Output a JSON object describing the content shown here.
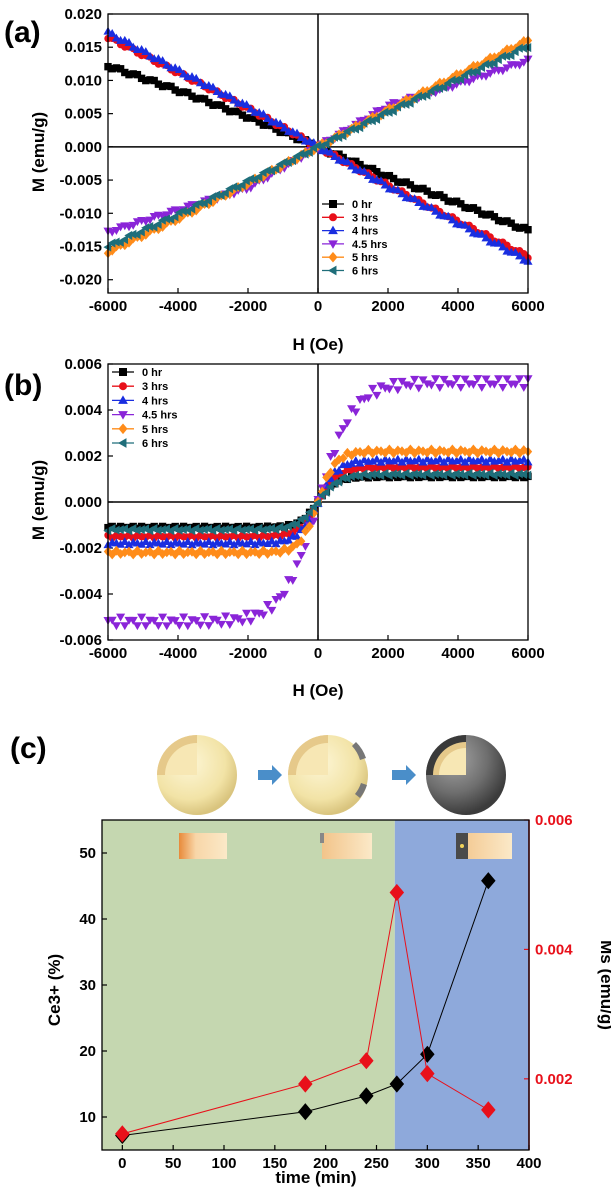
{
  "chart_data": [
    {
      "panel": "(a)",
      "type": "scatter",
      "xlabel": "H (Oe)",
      "ylabel": "M (emu/g)",
      "xlim": [
        -6000,
        6000
      ],
      "ylim": [
        -0.022,
        0.02
      ],
      "xticks": [
        "-6000",
        "-4000",
        "-2000",
        "0",
        "2000",
        "4000",
        "6000"
      ],
      "yticks": [
        "0.020",
        "0.015",
        "0.010",
        "0.005",
        "0.000",
        "-0.005",
        "-0.010",
        "-0.015",
        "-0.020"
      ],
      "legend_position": "bottom-right",
      "series": [
        {
          "name": "0 hr",
          "color": "#000000",
          "marker": "square",
          "x": [
            -6000,
            -4000,
            -2000,
            0,
            2000,
            4000,
            6000
          ],
          "y": [
            0.0122,
            0.0085,
            0.0045,
            0.0,
            -0.0045,
            -0.0085,
            -0.0126
          ]
        },
        {
          "name": "3 hrs",
          "color": "#e8101a",
          "marker": "circle",
          "x": [
            -6000,
            -4000,
            -2000,
            0,
            2000,
            4000,
            6000
          ],
          "y": [
            0.0165,
            0.0112,
            0.0058,
            0.0,
            -0.0058,
            -0.0112,
            -0.0165
          ]
        },
        {
          "name": "4 hrs",
          "color": "#1a2ee0",
          "marker": "triangle-up",
          "x": [
            -6000,
            -4000,
            -2000,
            0,
            2000,
            4000,
            6000
          ],
          "y": [
            0.0172,
            0.0115,
            0.006,
            0.0,
            -0.006,
            -0.0115,
            -0.0172
          ]
        },
        {
          "name": "4.5 hrs",
          "color": "#8a25d8",
          "marker": "triangle-down",
          "x": [
            -6000,
            -4000,
            -2000,
            0,
            2000,
            4000,
            6000
          ],
          "y": [
            -0.0128,
            -0.0095,
            -0.0062,
            0.0,
            0.0062,
            0.0095,
            0.013
          ]
        },
        {
          "name": "5 hrs",
          "color": "#ff8c1a",
          "marker": "diamond",
          "x": [
            -6000,
            -4000,
            -2000,
            0,
            2000,
            4000,
            6000
          ],
          "y": [
            -0.0158,
            -0.0108,
            -0.0055,
            0.0,
            0.0055,
            0.0108,
            0.016
          ]
        },
        {
          "name": "6 hrs",
          "color": "#1f6e7a",
          "marker": "triangle-left",
          "x": [
            -6000,
            -4000,
            -2000,
            0,
            2000,
            4000,
            6000
          ],
          "y": [
            -0.015,
            -0.0102,
            -0.0052,
            0.0,
            0.0052,
            0.0102,
            0.0152
          ]
        }
      ]
    },
    {
      "panel": "(b)",
      "type": "scatter",
      "xlabel": "H (Oe)",
      "ylabel": "M (emu/g)",
      "xlim": [
        -6000,
        6000
      ],
      "ylim": [
        -0.006,
        0.006
      ],
      "xticks": [
        "-6000",
        "-4000",
        "-2000",
        "0",
        "2000",
        "4000",
        "6000"
      ],
      "yticks": [
        "0.006",
        "0.004",
        "0.002",
        "0.000",
        "-0.002",
        "-0.004",
        "-0.006"
      ],
      "legend_position": "top-left",
      "series": [
        {
          "name": "0 hr",
          "color": "#000000",
          "marker": "square",
          "ms": 0.0011,
          "h0": 500
        },
        {
          "name": "3 hrs",
          "color": "#e8101a",
          "marker": "circle",
          "ms": 0.0015,
          "h0": 550
        },
        {
          "name": "4 hrs",
          "color": "#1a2ee0",
          "marker": "triangle-up",
          "ms": 0.0018,
          "h0": 550
        },
        {
          "name": "4.5 hrs",
          "color": "#8a25d8",
          "marker": "triangle-down",
          "ms": 0.0052,
          "h0": 1000
        },
        {
          "name": "5 hrs",
          "color": "#ff8c1a",
          "marker": "diamond",
          "ms": 0.0022,
          "h0": 500
        },
        {
          "name": "6 hrs",
          "color": "#1f6e7a",
          "marker": "triangle-left",
          "ms": 0.0012,
          "h0": 600
        }
      ]
    },
    {
      "panel": "(c)",
      "type": "line",
      "xlabel": "time (min)",
      "ylabel": "Ce3+ (%)",
      "y2label": "Ms (emu/g)",
      "xlim": [
        -20,
        400
      ],
      "ylim": [
        5,
        55
      ],
      "y2lim": [
        0.0009,
        0.006
      ],
      "xticks": [
        "0",
        "50",
        "100",
        "150",
        "200",
        "250",
        "300",
        "350",
        "400"
      ],
      "yticks": [
        "50",
        "40",
        "30",
        "20",
        "10"
      ],
      "y2ticks": [
        "0.006",
        "0.004",
        "0.002"
      ],
      "regions": [
        {
          "from": -20,
          "to": 268,
          "color": "#c5d7b0"
        },
        {
          "from": 268,
          "to": 400,
          "color": "#8ea9db"
        }
      ],
      "series": [
        {
          "name": "Ce3+",
          "color": "#000000",
          "marker": "diamond",
          "axis": "left",
          "x": [
            0,
            180,
            240,
            270,
            300,
            360
          ],
          "y": [
            7.2,
            10.8,
            13.2,
            15.0,
            19.5,
            45.8
          ]
        },
        {
          "name": "Ms",
          "color": "#e8101a",
          "marker": "diamond",
          "axis": "right",
          "x": [
            0,
            180,
            240,
            270,
            300,
            360
          ],
          "y": [
            0.00115,
            0.00192,
            0.00228,
            0.00488,
            0.00208,
            0.00152
          ]
        }
      ]
    }
  ]
}
